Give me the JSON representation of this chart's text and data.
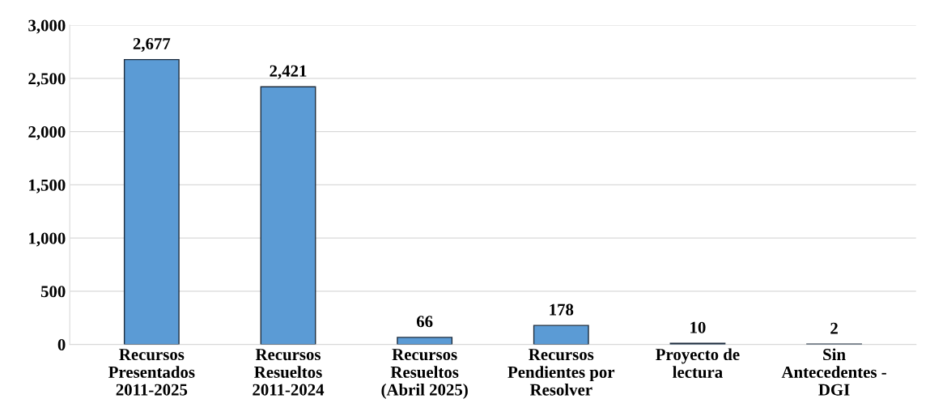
{
  "chart_data": {
    "type": "bar",
    "categories": [
      "Recursos\nPresentados\n2011-2025",
      "Recursos\nResueltos\n2011-2024",
      "Recursos\nResueltos\n(Abril 2025)",
      "Recursos\nPendientes por\nResolver",
      "Proyecto de\nlectura",
      "Sin\nAntecedentes -\nDGI"
    ],
    "values": [
      2677,
      2421,
      66,
      178,
      10,
      2
    ],
    "value_labels": [
      "2,677",
      "2,421",
      "66",
      "178",
      "10",
      "2"
    ],
    "color": "#5b9bd5",
    "ylim": [
      0,
      3000
    ],
    "yticks": [
      {
        "value": 0,
        "label": "0"
      },
      {
        "value": 500,
        "label": "500"
      },
      {
        "value": 1000,
        "label": "1,000"
      },
      {
        "value": 1500,
        "label": "1,500"
      },
      {
        "value": 2000,
        "label": "2,000"
      },
      {
        "value": 2500,
        "label": "2,500"
      },
      {
        "value": 3000,
        "label": "3,000"
      }
    ],
    "grid": "y"
  }
}
